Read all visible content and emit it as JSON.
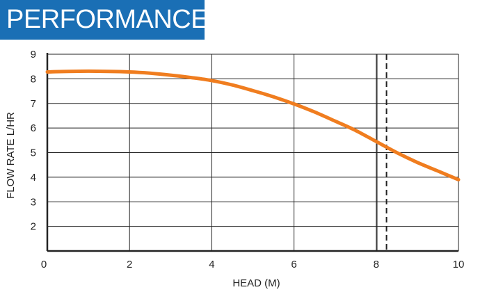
{
  "banner": {
    "title": "PERFORMANCE"
  },
  "colors": {
    "banner_bg": "#1a6fb5",
    "curve": "#f07d1f",
    "grid": "#222222"
  },
  "chart_data": {
    "type": "line",
    "xlabel": "HEAD (M)",
    "ylabel": "FLOW RATE L/HR",
    "xlim": [
      0,
      10
    ],
    "ylim": [
      1,
      9
    ],
    "x_ticks": [
      0,
      2,
      4,
      6,
      8,
      10
    ],
    "y_ticks": [
      2,
      3,
      4,
      5,
      6,
      7,
      8,
      9
    ],
    "grid": true,
    "extra_vertical_gridline": 8,
    "reference_line": {
      "x": 8.25,
      "style": "dashed"
    },
    "series": [
      {
        "x": [
          0,
          0.5,
          1,
          1.5,
          2,
          2.5,
          3,
          3.5,
          4,
          4.5,
          5,
          5.5,
          6,
          6.5,
          7,
          7.5,
          8,
          8.5,
          9,
          9.5,
          10
        ],
        "y": [
          8.28,
          8.3,
          8.31,
          8.3,
          8.28,
          8.23,
          8.15,
          8.05,
          7.93,
          7.75,
          7.52,
          7.27,
          6.98,
          6.65,
          6.28,
          5.9,
          5.45,
          5.0,
          4.6,
          4.25,
          3.9
        ]
      }
    ]
  }
}
